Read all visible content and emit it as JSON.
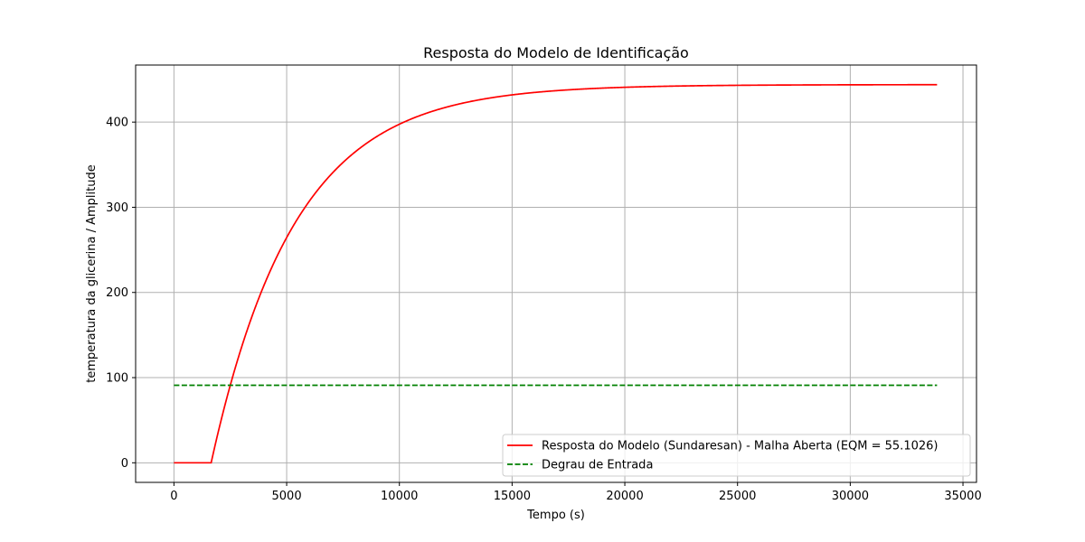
{
  "chart_data": {
    "type": "line",
    "title": "Resposta do Modelo de Identificação",
    "xlabel": "Tempo (s)",
    "ylabel": "temperatura da glicerina / Amplitude",
    "xlim": [
      -1700,
      35600
    ],
    "ylim": [
      -23,
      467
    ],
    "xticks": [
      0,
      5000,
      10000,
      15000,
      20000,
      25000,
      30000,
      35000
    ],
    "xtick_labels": [
      "0",
      "5000",
      "10000",
      "15000",
      "20000",
      "25000",
      "30000",
      "35000"
    ],
    "yticks": [
      0,
      100,
      200,
      300,
      400
    ],
    "ytick_labels": [
      "0",
      "100",
      "200",
      "300",
      "400"
    ],
    "grid": true,
    "legend_position": "lower-right",
    "series": [
      {
        "name": "Resposta do Modelo (Sundaresan) - Malha Aberta (EQM = 55.1026)",
        "color": "#ff0000",
        "style": "solid",
        "model": {
          "dead_time": 1650,
          "gain_final": 444,
          "time_constant": 3700,
          "x_end": 33850
        }
      },
      {
        "name": "Degrau de Entrada",
        "color": "#008000",
        "style": "dashed",
        "value": 91,
        "x_range": [
          0,
          33850
        ]
      }
    ]
  }
}
